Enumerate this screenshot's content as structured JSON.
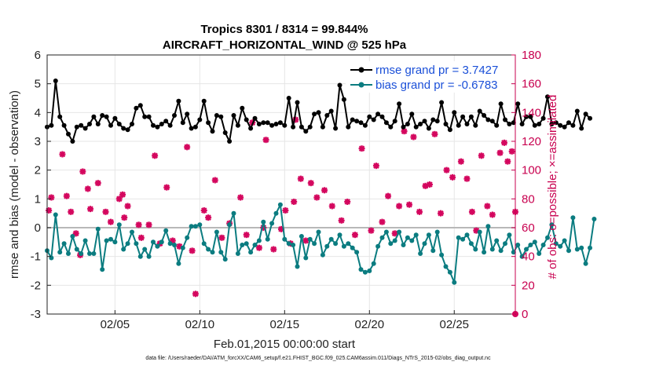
{
  "chart_data": {
    "type": "line",
    "title": "Tropics 8301 / 8314 = 99.844%",
    "subtitle": "AIRCRAFT_HORIZONTAL_WIND @ 525 hPa",
    "xlabel": "Feb.01,2015 00:00:00 start",
    "ylabel_left": "rmse and bias (model - observation)",
    "ylabel_right": "# of obs: o=possible; ×=assimilated",
    "ylim_left": [
      -3,
      6
    ],
    "ylim_right": [
      0,
      180
    ],
    "xlim_days": [
      1,
      28.6
    ],
    "x_tick_labels": [
      "02/05",
      "02/10",
      "02/15",
      "02/20",
      "02/25"
    ],
    "x_tick_days": [
      5,
      10,
      15,
      20,
      25
    ],
    "y_left_ticks": [
      -3,
      -2,
      -1,
      0,
      1,
      2,
      3,
      4,
      5,
      6
    ],
    "y_right_ticks": [
      0,
      20,
      40,
      60,
      80,
      100,
      120,
      140,
      160,
      180
    ],
    "legend_placement": "top-right",
    "series": [
      {
        "name": "rmse grand pr = 3.7427",
        "color": "#000000",
        "x_start_day": 1,
        "x_step_day": 0.25,
        "values": [
          3.5,
          3.55,
          5.1,
          3.85,
          3.55,
          3.25,
          3.0,
          3.5,
          3.55,
          3.45,
          3.6,
          3.85,
          3.6,
          3.9,
          3.85,
          3.55,
          3.8,
          3.6,
          3.45,
          3.4,
          3.6,
          4.15,
          4.25,
          3.85,
          3.85,
          3.55,
          3.5,
          3.6,
          3.7,
          3.55,
          3.9,
          4.4,
          3.65,
          3.95,
          3.45,
          3.5,
          3.75,
          4.4,
          3.65,
          3.35,
          3.9,
          3.85,
          3.3,
          3.0,
          3.9,
          3.55,
          4.15,
          3.75,
          3.45,
          3.8,
          3.6,
          3.65,
          3.65,
          3.55,
          3.6,
          3.65,
          3.55,
          4.5,
          3.5,
          4.35,
          3.5,
          3.35,
          3.5,
          3.95,
          4.0,
          3.5,
          3.9,
          4.05,
          3.45,
          4.95,
          4.45,
          3.5,
          3.75,
          3.7,
          3.65,
          3.55,
          3.85,
          3.75,
          3.95,
          3.85,
          3.65,
          3.5,
          3.7,
          4.3,
          3.5,
          3.6,
          3.95,
          3.5,
          3.6,
          3.7,
          3.45,
          3.75,
          3.7,
          4.35,
          3.6,
          3.4,
          4.0,
          3.55,
          3.85,
          3.6,
          3.85,
          3.55,
          4.05,
          3.9,
          3.75,
          3.7,
          3.55,
          4.3,
          3.75,
          3.6,
          3.65,
          4.3,
          3.6,
          3.85,
          3.85,
          3.55,
          3.6,
          3.8,
          4.55,
          3.6,
          3.65,
          3.55,
          3.5,
          3.65,
          3.55,
          4.05,
          3.45,
          3.95,
          3.8
        ]
      },
      {
        "name": "bias grand pr = -0.6783",
        "color": "#0b7c80",
        "x_start_day": 1,
        "x_step_day": 0.25,
        "values": [
          -0.8,
          -1.05,
          0.45,
          -0.85,
          -0.55,
          -0.9,
          -0.3,
          -0.75,
          -0.9,
          -0.45,
          -0.9,
          -0.9,
          -0.05,
          -1.45,
          -0.45,
          -0.4,
          -0.5,
          0.1,
          -0.75,
          -0.55,
          -0.15,
          -0.55,
          -1.0,
          -0.75,
          -1.0,
          -0.5,
          -0.65,
          -0.5,
          -0.1,
          -0.55,
          -0.6,
          -1.25,
          -0.7,
          -0.35,
          0.05,
          0.05,
          0.1,
          -0.55,
          -0.75,
          -0.85,
          -0.15,
          -0.85,
          -1.1,
          0.1,
          0.5,
          -0.9,
          -0.6,
          -0.55,
          -0.85,
          -0.6,
          -0.45,
          0.2,
          -0.4,
          0.15,
          0.5,
          0.8,
          -0.4,
          -0.55,
          -0.6,
          -1.35,
          -0.3,
          -1.05,
          -0.4,
          -0.55,
          -0.15,
          -0.95,
          -0.65,
          -0.4,
          -0.55,
          -0.25,
          -0.65,
          -0.55,
          -0.7,
          -0.85,
          -1.45,
          -1.55,
          -1.5,
          -1.25,
          -0.65,
          -0.35,
          -0.15,
          -0.55,
          -0.45,
          -0.15,
          -0.6,
          -0.35,
          -0.45,
          -0.25,
          -0.9,
          -0.55,
          -0.25,
          -0.8,
          -0.15,
          -0.95,
          -1.35,
          -1.55,
          -1.9,
          -0.35,
          -0.4,
          -0.25,
          -0.55,
          -0.75,
          -0.15,
          -0.85,
          0.05,
          -0.75,
          -0.45,
          -0.8,
          -0.55,
          -0.25,
          -0.85,
          -0.6,
          -1.0,
          -0.75,
          -0.6,
          -0.5,
          -0.9,
          -0.6,
          -0.35,
          0.1,
          -0.55,
          -0.65,
          -0.45,
          -0.8,
          0.35,
          -0.75,
          -0.7,
          -1.25,
          -0.7,
          0.3
        ]
      }
    ],
    "obs_possible": {
      "color": "#d4075e",
      "marker": "x",
      "points": [
        [
          1.1,
          72
        ],
        [
          1.25,
          81
        ],
        [
          1.9,
          111
        ],
        [
          2.15,
          82
        ],
        [
          2.4,
          71
        ],
        [
          2.7,
          56
        ],
        [
          2.95,
          41
        ],
        [
          3.1,
          99
        ],
        [
          3.4,
          87
        ],
        [
          3.55,
          73
        ],
        [
          4.0,
          91
        ],
        [
          4.45,
          71
        ],
        [
          4.75,
          64
        ],
        [
          5.25,
          80
        ],
        [
          5.45,
          83
        ],
        [
          5.55,
          67
        ],
        [
          5.75,
          75
        ],
        [
          6.4,
          62
        ],
        [
          6.55,
          53
        ],
        [
          7.0,
          62
        ],
        [
          7.35,
          110
        ],
        [
          7.65,
          49
        ],
        [
          8.05,
          88
        ],
        [
          8.4,
          51
        ],
        [
          8.8,
          47
        ],
        [
          9.25,
          116
        ],
        [
          9.55,
          44
        ],
        [
          9.75,
          14
        ],
        [
          10.25,
          72
        ],
        [
          10.5,
          67
        ],
        [
          10.9,
          93
        ],
        [
          11.3,
          53
        ],
        [
          11.75,
          63
        ],
        [
          12.4,
          81
        ],
        [
          12.75,
          55
        ],
        [
          13.1,
          133
        ],
        [
          13.5,
          46
        ],
        [
          13.75,
          60
        ],
        [
          13.9,
          121
        ],
        [
          14.35,
          45
        ],
        [
          14.8,
          59
        ],
        [
          15.05,
          72
        ],
        [
          15.35,
          49
        ],
        [
          15.55,
          78
        ],
        [
          15.65,
          135
        ],
        [
          15.95,
          94
        ],
        [
          16.25,
          51
        ],
        [
          16.55,
          91
        ],
        [
          16.9,
          81
        ],
        [
          17.35,
          86
        ],
        [
          17.8,
          75
        ],
        [
          18.35,
          65
        ],
        [
          18.7,
          78
        ],
        [
          19.15,
          55
        ],
        [
          19.55,
          115
        ],
        [
          20.1,
          58
        ],
        [
          20.4,
          103
        ],
        [
          20.75,
          64
        ],
        [
          21.1,
          82
        ],
        [
          21.5,
          56
        ],
        [
          21.75,
          75
        ],
        [
          22.05,
          127
        ],
        [
          22.35,
          76
        ],
        [
          22.6,
          123
        ],
        [
          22.95,
          71
        ],
        [
          23.3,
          89
        ],
        [
          23.55,
          90
        ],
        [
          23.85,
          125
        ],
        [
          24.2,
          70
        ],
        [
          24.55,
          100
        ],
        [
          24.9,
          95
        ],
        [
          25.4,
          106
        ],
        [
          25.75,
          94
        ],
        [
          26.05,
          71
        ],
        [
          26.3,
          58
        ],
        [
          26.6,
          110
        ],
        [
          26.95,
          75
        ],
        [
          27.25,
          69
        ],
        [
          27.7,
          112
        ],
        [
          27.95,
          119
        ],
        [
          28.15,
          106
        ],
        [
          28.4,
          113
        ],
        [
          28.6,
          71
        ]
      ]
    },
    "obs_possible_endpoint": [
      28.6,
      0
    ]
  },
  "footer": {
    "data_file": "data file: /Users/raeder/DAI/ATM_forcXX/CAM6_setup/f.e21.FHIST_BGC.f09_025.CAM6assim.011/Diags_NTrS_2015-02/obs_diag_output.nc"
  }
}
